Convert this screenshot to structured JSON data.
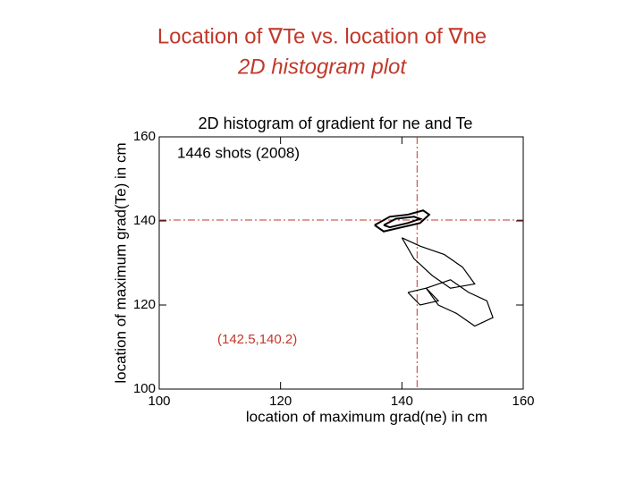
{
  "header": {
    "line1": "Location of ∇Te vs. location of ∇ne",
    "line2": "2D histogram plot"
  },
  "chart_data": {
    "type": "contour",
    "title": "2D histogram of gradient for ne and Te",
    "xlabel": "location of maximum grad(ne) in cm",
    "ylabel": "location of maximum grad(Te) in cm",
    "annotations": [
      "1446 shots (2008)",
      "(142.5,140.2)"
    ],
    "xlim": [
      100,
      160
    ],
    "ylim": [
      100,
      160
    ],
    "xticks": [
      100,
      120,
      140,
      160
    ],
    "yticks": [
      100,
      120,
      140,
      160
    ],
    "crosshair": {
      "x": 142.5,
      "y": 140.2,
      "color": "#c0392b"
    },
    "color": "#000000",
    "series": [
      {
        "x": [
          135.5,
          138,
          141,
          143.5,
          144.5,
          143,
          140,
          137,
          135.5
        ],
        "y": [
          139,
          141,
          141.5,
          142.5,
          141.5,
          139.5,
          138.5,
          137.5,
          139
        ]
      },
      {
        "x": [
          137,
          139,
          142,
          143,
          141,
          138,
          137
        ],
        "y": [
          139,
          140.5,
          141,
          140.5,
          139.5,
          138.5,
          139
        ]
      },
      {
        "x": [
          140,
          143,
          147,
          150,
          152,
          148,
          145,
          142,
          140
        ],
        "y": [
          136,
          134,
          132,
          129,
          125,
          124,
          127,
          131,
          136
        ]
      },
      {
        "x": [
          144,
          148,
          151,
          154,
          155,
          152,
          149,
          146,
          144
        ],
        "y": [
          124,
          126,
          123,
          121,
          117,
          115,
          118,
          120,
          124
        ]
      },
      {
        "x": [
          141,
          144,
          146,
          143,
          141
        ],
        "y": [
          123,
          124,
          121,
          120,
          123
        ]
      }
    ]
  }
}
